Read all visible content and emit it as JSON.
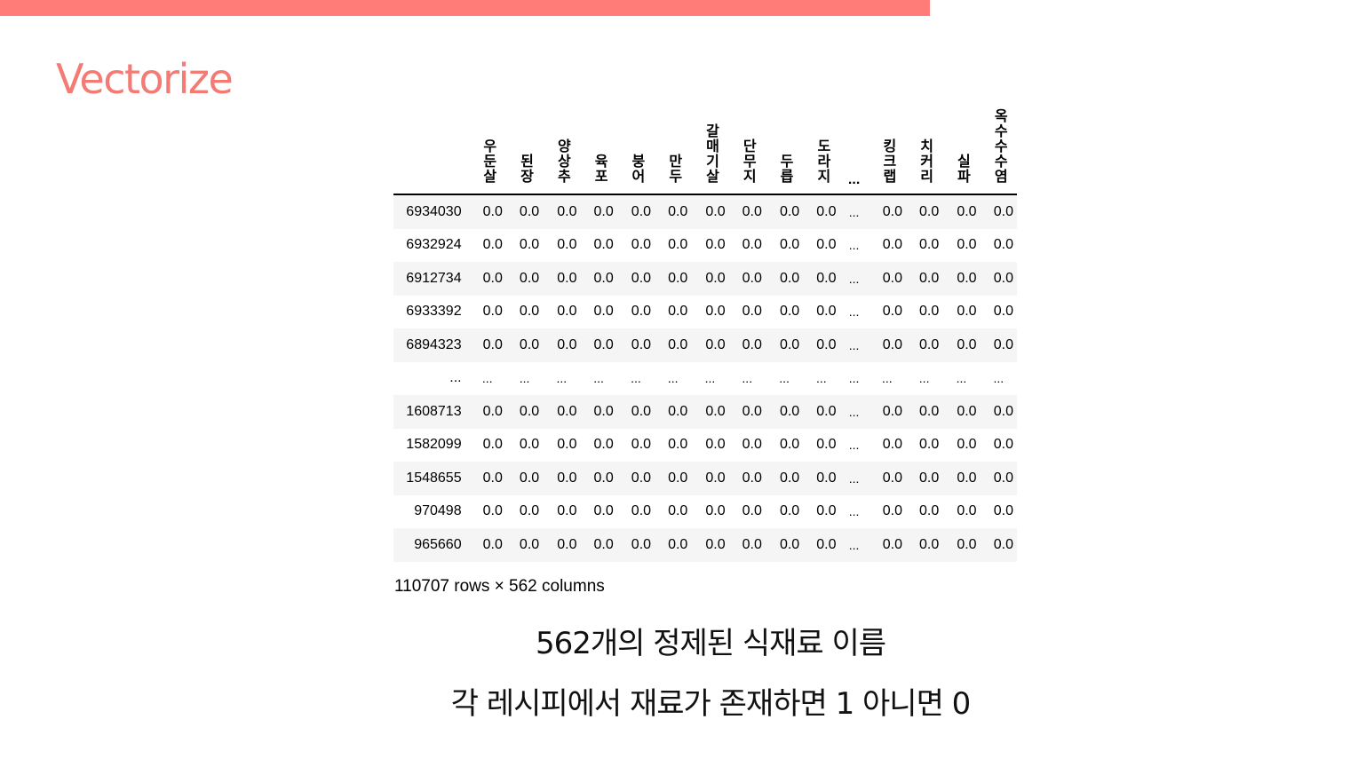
{
  "slide": {
    "title": "Vectorize",
    "accent_color": "#ff7c78",
    "title_color": "#f47a74"
  },
  "table": {
    "columns": [
      "우둔살",
      "된장",
      "양상추",
      "육포",
      "붕어",
      "만두",
      "갈매기살",
      "단무지",
      "두릅",
      "도라지",
      "...",
      "킹크랩",
      "치커리",
      "실파",
      "옥수수수염"
    ],
    "rows": [
      {
        "index": "6934030",
        "cells": [
          "0.0",
          "0.0",
          "0.0",
          "0.0",
          "0.0",
          "0.0",
          "0.0",
          "0.0",
          "0.0",
          "0.0",
          "...",
          "0.0",
          "0.0",
          "0.0",
          "0.0"
        ]
      },
      {
        "index": "6932924",
        "cells": [
          "0.0",
          "0.0",
          "0.0",
          "0.0",
          "0.0",
          "0.0",
          "0.0",
          "0.0",
          "0.0",
          "0.0",
          "...",
          "0.0",
          "0.0",
          "0.0",
          "0.0"
        ]
      },
      {
        "index": "6912734",
        "cells": [
          "0.0",
          "0.0",
          "0.0",
          "0.0",
          "0.0",
          "0.0",
          "0.0",
          "0.0",
          "0.0",
          "0.0",
          "...",
          "0.0",
          "0.0",
          "0.0",
          "0.0"
        ]
      },
      {
        "index": "6933392",
        "cells": [
          "0.0",
          "0.0",
          "0.0",
          "0.0",
          "0.0",
          "0.0",
          "0.0",
          "0.0",
          "0.0",
          "0.0",
          "...",
          "0.0",
          "0.0",
          "0.0",
          "0.0"
        ]
      },
      {
        "index": "6894323",
        "cells": [
          "0.0",
          "0.0",
          "0.0",
          "0.0",
          "0.0",
          "0.0",
          "0.0",
          "0.0",
          "0.0",
          "0.0",
          "...",
          "0.0",
          "0.0",
          "0.0",
          "0.0"
        ]
      },
      {
        "index": "...",
        "cells": [
          "...",
          "...",
          "...",
          "...",
          "...",
          "...",
          "...",
          "...",
          "...",
          "...",
          "...",
          "...",
          "...",
          "...",
          "..."
        ]
      },
      {
        "index": "1608713",
        "cells": [
          "0.0",
          "0.0",
          "0.0",
          "0.0",
          "0.0",
          "0.0",
          "0.0",
          "0.0",
          "0.0",
          "0.0",
          "...",
          "0.0",
          "0.0",
          "0.0",
          "0.0"
        ]
      },
      {
        "index": "1582099",
        "cells": [
          "0.0",
          "0.0",
          "0.0",
          "0.0",
          "0.0",
          "0.0",
          "0.0",
          "0.0",
          "0.0",
          "0.0",
          "...",
          "0.0",
          "0.0",
          "0.0",
          "0.0"
        ]
      },
      {
        "index": "1548655",
        "cells": [
          "0.0",
          "0.0",
          "0.0",
          "0.0",
          "0.0",
          "0.0",
          "0.0",
          "0.0",
          "0.0",
          "0.0",
          "...",
          "0.0",
          "0.0",
          "0.0",
          "0.0"
        ]
      },
      {
        "index": "970498",
        "cells": [
          "0.0",
          "0.0",
          "0.0",
          "0.0",
          "0.0",
          "0.0",
          "0.0",
          "0.0",
          "0.0",
          "0.0",
          "...",
          "0.0",
          "0.0",
          "0.0",
          "0.0"
        ]
      },
      {
        "index": "965660",
        "cells": [
          "0.0",
          "0.0",
          "0.0",
          "0.0",
          "0.0",
          "0.0",
          "0.0",
          "0.0",
          "0.0",
          "0.0",
          "...",
          "0.0",
          "0.0",
          "0.0",
          "0.0"
        ]
      }
    ],
    "shape_note": "110707 rows × 562 columns"
  },
  "captions": {
    "line1": "562개의 정제된 식재료 이름",
    "line2": "각 레시피에서 재료가 존재하면 1 아니면 0"
  }
}
